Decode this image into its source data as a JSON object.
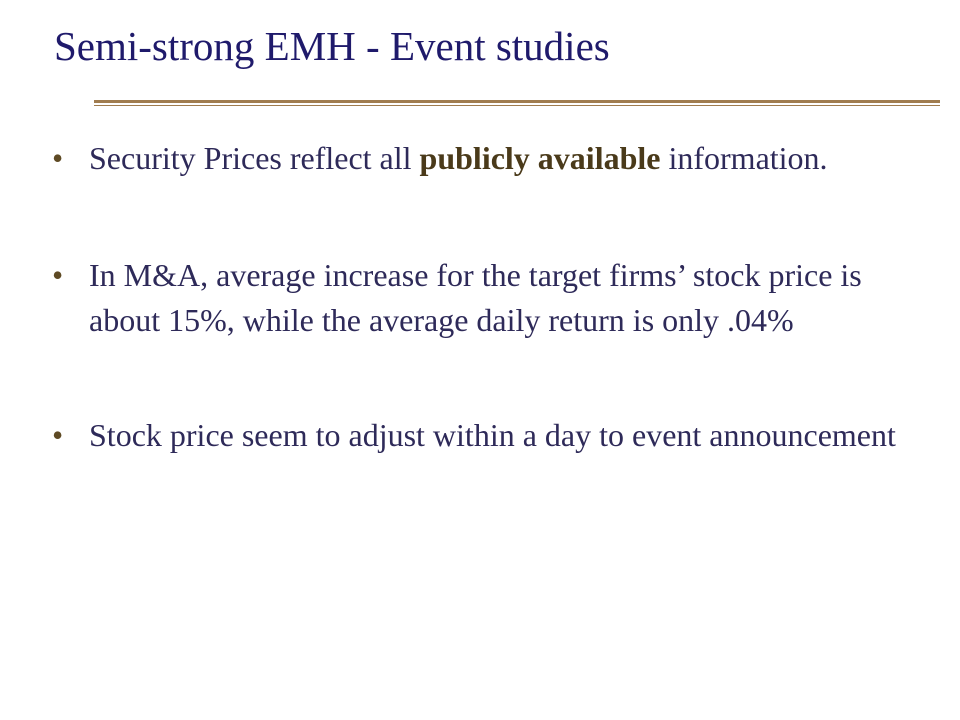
{
  "slide": {
    "title": "Semi-strong EMH - Event studies",
    "bullets": [
      {
        "before": "Security Prices reflect all ",
        "bold": "publicly available",
        "after": " information."
      },
      {
        "text": "In M&A, average increase for the target firms’ stock price is about 15%, while the average daily return is only .04%"
      },
      {
        "text": "Stock price seem to adjust within a day to event announcement"
      }
    ],
    "bullet_glyph": "•"
  }
}
